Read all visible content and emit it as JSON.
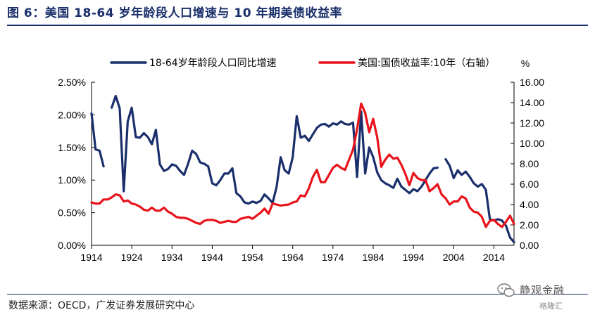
{
  "figure": {
    "title": "图 6：美国 18-64 岁年龄段人口增速与 10 年期美债收益率",
    "source": "数据来源：OECD，广发证券发展研究中心",
    "watermark": "静观金融",
    "watermark_sub": "格隆汇"
  },
  "chart_data": {
    "type": "line",
    "title": "",
    "xlabel": "",
    "ylabel": "",
    "ylabel_right": "%",
    "xlim": [
      1914,
      2019
    ],
    "ylim": [
      0,
      0.025
    ],
    "ylim_right": [
      0,
      16
    ],
    "x_ticks": [
      1914,
      1924,
      1934,
      1944,
      1954,
      1964,
      1974,
      1984,
      1994,
      2004,
      2014
    ],
    "x_tick_labels": [
      "1914",
      "1924",
      "1934",
      "1944",
      "1954",
      "1964",
      "1974",
      "1984",
      "1994",
      "2004",
      "2014"
    ],
    "y_ticks": [
      0,
      0.005,
      0.01,
      0.015,
      0.02,
      0.025
    ],
    "y_tick_labels": [
      "0.00%",
      "0.50%",
      "1.00%",
      "1.50%",
      "2.00%",
      "2.50%"
    ],
    "y_ticks_right": [
      0,
      2,
      4,
      6,
      8,
      10,
      12,
      14,
      16
    ],
    "y_tick_labels_right": [
      "0.00",
      "2.00",
      "4.00",
      "6.00",
      "8.00",
      "10.00",
      "12.00",
      "14.00",
      "16.00"
    ],
    "grid": false,
    "legend_position": "top",
    "series": [
      {
        "name": "18-64岁年龄段人口同比增速",
        "axis": "left",
        "color": "#1a2f6b",
        "segments": [
          [
            [
              1914,
              0.0202
            ],
            [
              1915,
              0.0147
            ],
            [
              1916,
              0.0145
            ],
            [
              1917,
              0.0121
            ]
          ],
          [
            [
              1919,
              0.0211
            ],
            [
              1920,
              0.0229
            ],
            [
              1921,
              0.021
            ],
            [
              1922,
              0.0083
            ],
            [
              1923,
              0.019
            ],
            [
              1924,
              0.0211
            ],
            [
              1925,
              0.0166
            ],
            [
              1926,
              0.0165
            ],
            [
              1927,
              0.0172
            ],
            [
              1928,
              0.0166
            ],
            [
              1929,
              0.0155
            ],
            [
              1930,
              0.0177
            ],
            [
              1931,
              0.0124
            ],
            [
              1932,
              0.0114
            ],
            [
              1933,
              0.0117
            ],
            [
              1934,
              0.0124
            ],
            [
              1935,
              0.0122
            ],
            [
              1936,
              0.0114
            ],
            [
              1937,
              0.0108
            ],
            [
              1938,
              0.0125
            ],
            [
              1939,
              0.0145
            ],
            [
              1940,
              0.014
            ],
            [
              1941,
              0.0127
            ],
            [
              1942,
              0.0125
            ],
            [
              1943,
              0.0121
            ],
            [
              1944,
              0.0095
            ],
            [
              1945,
              0.0092
            ],
            [
              1946,
              0.01
            ],
            [
              1947,
              0.011
            ],
            [
              1948,
              0.011
            ],
            [
              1949,
              0.0118
            ],
            [
              1950,
              0.008
            ],
            [
              1951,
              0.0075
            ],
            [
              1952,
              0.0066
            ],
            [
              1953,
              0.0064
            ],
            [
              1954,
              0.0067
            ],
            [
              1955,
              0.0065
            ],
            [
              1956,
              0.0068
            ],
            [
              1957,
              0.0078
            ],
            [
              1958,
              0.0072
            ],
            [
              1959,
              0.0065
            ],
            [
              1960,
              0.009
            ],
            [
              1961,
              0.0135
            ],
            [
              1962,
              0.0115
            ],
            [
              1963,
              0.011
            ],
            [
              1964,
              0.0135
            ],
            [
              1965,
              0.0198
            ],
            [
              1966,
              0.0165
            ],
            [
              1967,
              0.0168
            ],
            [
              1968,
              0.016
            ],
            [
              1969,
              0.017
            ],
            [
              1970,
              0.018
            ],
            [
              1971,
              0.0185
            ],
            [
              1972,
              0.0186
            ],
            [
              1973,
              0.0182
            ],
            [
              1974,
              0.0187
            ],
            [
              1975,
              0.0185
            ],
            [
              1976,
              0.019
            ],
            [
              1977,
              0.0186
            ],
            [
              1978,
              0.0185
            ],
            [
              1979,
              0.0188
            ],
            [
              1980,
              0.0105
            ],
            [
              1981,
              0.0205
            ],
            [
              1982,
              0.011
            ],
            [
              1983,
              0.015
            ],
            [
              1984,
              0.0135
            ],
            [
              1985,
              0.0112
            ],
            [
              1986,
              0.01
            ],
            [
              1987,
              0.0095
            ],
            [
              1988,
              0.0092
            ],
            [
              1989,
              0.0088
            ],
            [
              1990,
              0.0102
            ],
            [
              1991,
              0.009
            ],
            [
              1992,
              0.0085
            ],
            [
              1993,
              0.008
            ],
            [
              1994,
              0.0086
            ],
            [
              1995,
              0.0083
            ],
            [
              1996,
              0.009
            ],
            [
              1997,
              0.01
            ],
            [
              1998,
              0.011
            ],
            [
              1999,
              0.0118
            ],
            [
              2000,
              0.0119
            ]
          ],
          [
            [
              2002,
              0.0132
            ],
            [
              2003,
              0.0122
            ],
            [
              2004,
              0.0103
            ],
            [
              2005,
              0.0115
            ],
            [
              2006,
              0.0108
            ],
            [
              2007,
              0.0113
            ],
            [
              2008,
              0.0105
            ],
            [
              2009,
              0.0095
            ],
            [
              2010,
              0.009
            ],
            [
              2011,
              0.0094
            ],
            [
              2012,
              0.0085
            ],
            [
              2013,
              0.004
            ],
            [
              2014,
              0.0038
            ],
            [
              2015,
              0.004
            ],
            [
              2016,
              0.0038
            ],
            [
              2017,
              0.003
            ],
            [
              2018,
              0.0012
            ],
            [
              2019,
              0.0005
            ]
          ]
        ]
      },
      {
        "name": "美国:国债收益率:10年（右轴）",
        "axis": "right",
        "color": "#e8131b",
        "segments": [
          [
            [
              1914,
              4.2
            ],
            [
              1915,
              4.1
            ],
            [
              1916,
              4.1
            ],
            [
              1917,
              4.5
            ],
            [
              1918,
              4.5
            ],
            [
              1919,
              4.7
            ],
            [
              1920,
              5.0
            ],
            [
              1921,
              4.9
            ],
            [
              1922,
              4.3
            ],
            [
              1923,
              4.4
            ],
            [
              1924,
              4.1
            ],
            [
              1925,
              4.0
            ],
            [
              1926,
              3.8
            ],
            [
              1927,
              3.5
            ],
            [
              1928,
              3.4
            ],
            [
              1929,
              3.7
            ],
            [
              1930,
              3.4
            ],
            [
              1931,
              3.4
            ],
            [
              1932,
              3.7
            ],
            [
              1933,
              3.3
            ],
            [
              1934,
              3.1
            ],
            [
              1935,
              2.8
            ],
            [
              1936,
              2.7
            ],
            [
              1937,
              2.7
            ],
            [
              1938,
              2.6
            ],
            [
              1939,
              2.4
            ],
            [
              1940,
              2.2
            ],
            [
              1941,
              2.1
            ],
            [
              1942,
              2.4
            ],
            [
              1943,
              2.5
            ],
            [
              1944,
              2.5
            ],
            [
              1945,
              2.4
            ],
            [
              1946,
              2.2
            ],
            [
              1947,
              2.3
            ],
            [
              1948,
              2.4
            ],
            [
              1949,
              2.3
            ],
            [
              1950,
              2.3
            ],
            [
              1951,
              2.6
            ],
            [
              1952,
              2.7
            ],
            [
              1953,
              2.8
            ],
            [
              1954,
              2.6
            ],
            [
              1955,
              2.9
            ],
            [
              1956,
              3.2
            ],
            [
              1957,
              3.6
            ],
            [
              1958,
              3.1
            ],
            [
              1959,
              4.1
            ],
            [
              1960,
              4.0
            ],
            [
              1961,
              3.9
            ],
            [
              1962,
              3.95
            ],
            [
              1963,
              4.0
            ],
            [
              1964,
              4.2
            ],
            [
              1965,
              4.3
            ],
            [
              1966,
              4.9
            ],
            [
              1967,
              4.8
            ],
            [
              1968,
              5.6
            ],
            [
              1969,
              6.7
            ],
            [
              1970,
              7.4
            ],
            [
              1971,
              6.2
            ],
            [
              1972,
              6.2
            ],
            [
              1973,
              6.9
            ],
            [
              1974,
              7.6
            ],
            [
              1975,
              7.9
            ],
            [
              1976,
              7.6
            ],
            [
              1977,
              7.4
            ],
            [
              1978,
              8.4
            ],
            [
              1979,
              9.4
            ],
            [
              1980,
              11.4
            ],
            [
              1981,
              13.9
            ],
            [
              1982,
              13.0
            ],
            [
              1983,
              11.1
            ],
            [
              1984,
              12.4
            ],
            [
              1985,
              10.6
            ],
            [
              1986,
              7.7
            ],
            [
              1987,
              8.4
            ],
            [
              1988,
              8.9
            ],
            [
              1989,
              8.5
            ],
            [
              1990,
              8.6
            ],
            [
              1991,
              7.9
            ],
            [
              1992,
              7.0
            ],
            [
              1993,
              5.9
            ],
            [
              1994,
              7.1
            ],
            [
              1995,
              6.6
            ],
            [
              1996,
              6.4
            ],
            [
              1997,
              6.4
            ],
            [
              1998,
              5.3
            ],
            [
              1999,
              5.6
            ],
            [
              2000,
              6.0
            ],
            [
              2001,
              5.0
            ],
            [
              2002,
              4.6
            ],
            [
              2003,
              4.0
            ],
            [
              2004,
              4.3
            ],
            [
              2005,
              4.3
            ],
            [
              2006,
              4.8
            ],
            [
              2007,
              4.6
            ],
            [
              2008,
              3.7
            ],
            [
              2009,
              3.3
            ],
            [
              2010,
              3.2
            ],
            [
              2011,
              2.8
            ],
            [
              2012,
              1.8
            ],
            [
              2013,
              2.4
            ],
            [
              2014,
              2.5
            ],
            [
              2015,
              2.1
            ],
            [
              2016,
              1.8
            ],
            [
              2017,
              2.3
            ],
            [
              2018,
              2.9
            ],
            [
              2019,
              2.1
            ]
          ]
        ]
      }
    ]
  }
}
